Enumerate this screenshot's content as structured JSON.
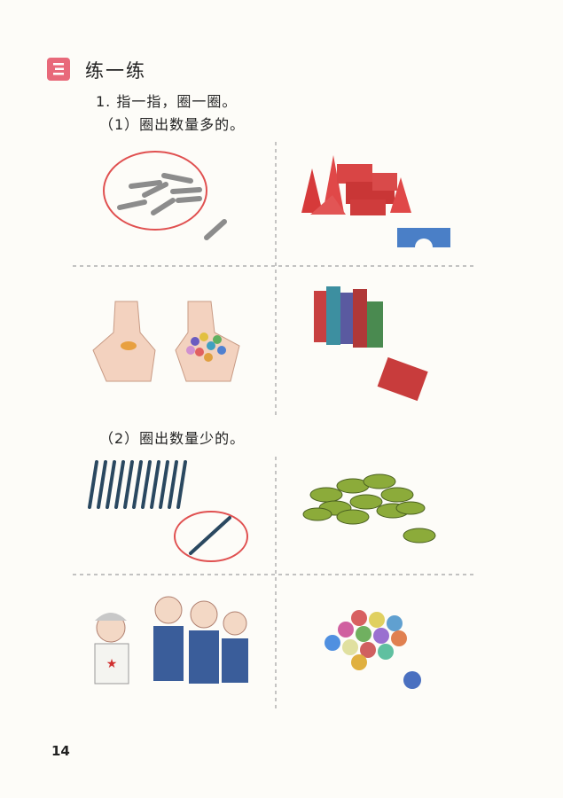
{
  "section": {
    "title": "练一练",
    "icon": "exercise-icon",
    "accent_color": "#e8697a"
  },
  "exercise": {
    "number_text": "1. 指一指，圈一圈。",
    "part1_text": "（1）圈出数量多的。",
    "part2_text": "（2）圈出数量少的。"
  },
  "panels": [
    {
      "icon": "sticks-illustration",
      "count": 8,
      "circled": true
    },
    {
      "icon": "blocks-illustration",
      "circled": false
    },
    {
      "icon": "hands-with-candies-illustration",
      "circled": false
    },
    {
      "icon": "books-illustration",
      "circled": false
    },
    {
      "icon": "pencils-illustration",
      "count": 11,
      "circled": false
    },
    {
      "icon": "single-pencil-illustration",
      "count": 1,
      "circled": true
    },
    {
      "icon": "gear-pieces-illustration",
      "circled": false
    },
    {
      "icon": "children-illustration",
      "count": 4,
      "circled": false
    },
    {
      "icon": "marbles-illustration",
      "circled": false
    }
  ],
  "colors": {
    "circle": "#e05050",
    "divider": "#999999"
  },
  "page_number": "14"
}
